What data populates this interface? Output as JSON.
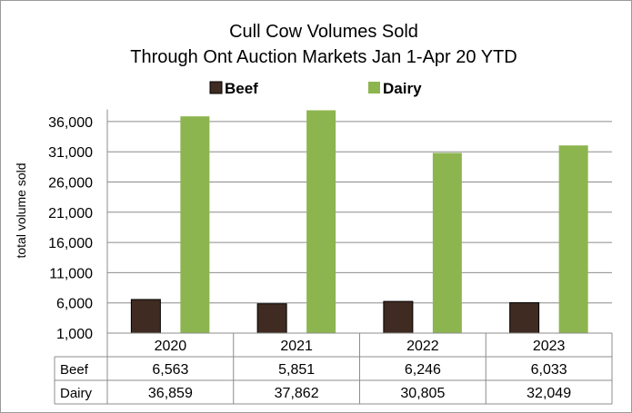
{
  "chart_data": {
    "type": "bar",
    "title": "Cull Cow Volumes Sold",
    "subtitle": "Through Ont Auction Markets Jan 1-Apr 20 YTD",
    "xlabel": "",
    "ylabel": "total volume  sold",
    "ylim": [
      1000,
      38000
    ],
    "yticks": [
      "1,000",
      "6,000",
      "11,000",
      "16,000",
      "21,000",
      "26,000",
      "31,000",
      "36,000"
    ],
    "ytick_values": [
      1000,
      6000,
      11000,
      16000,
      21000,
      26000,
      31000,
      36000
    ],
    "categories": [
      "2020",
      "2021",
      "2022",
      "2023"
    ],
    "legend_position": "top",
    "grid": true,
    "series": [
      {
        "name": "Beef",
        "color": "#3f2b22",
        "values": [
          6563,
          5851,
          6246,
          6033
        ],
        "labels": [
          "6,563",
          "5,851",
          "6,246",
          "6,033"
        ]
      },
      {
        "name": "Dairy",
        "color": "#8db54f",
        "values": [
          36859,
          37862,
          30805,
          32049
        ],
        "labels": [
          "36,859",
          "37,862",
          "30,805",
          "32,049"
        ]
      }
    ]
  }
}
